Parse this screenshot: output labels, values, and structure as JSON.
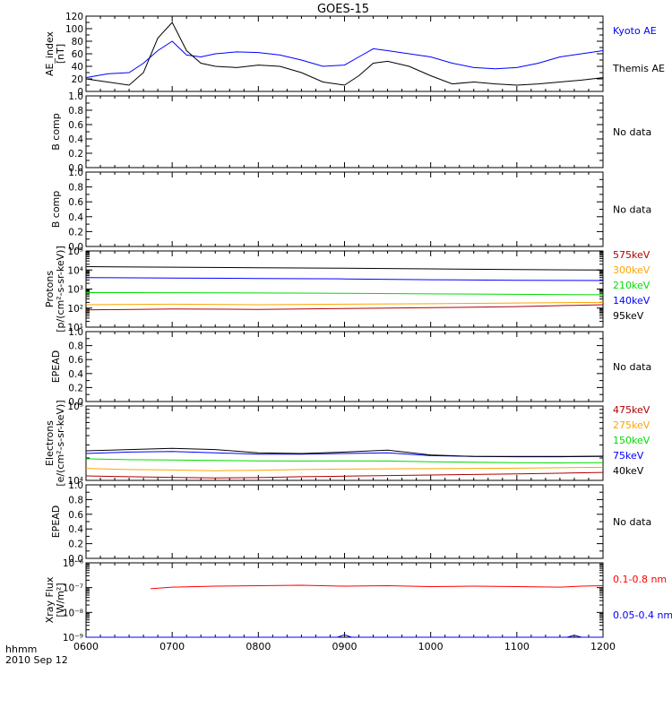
{
  "title": "GOES-15",
  "footer": {
    "time_label": "hhmm",
    "date_label": "2010 Sep 12"
  },
  "colors": {
    "black": "#000000",
    "blue": "#0000ff",
    "red": "#ff0000",
    "dark_red": "#b00000",
    "orange": "#ffa500",
    "green": "#00dd00"
  },
  "chart_data": [
    {
      "type": "line",
      "ylabel": [
        "AE_index",
        "[nT]"
      ],
      "ylim": [
        0,
        120
      ],
      "yticks": [
        "0",
        "20",
        "40",
        "60",
        "80",
        "100",
        "120"
      ],
      "xlim": [
        "0600",
        "1200"
      ],
      "series": [
        {
          "name": "Kyoto AE",
          "color": "#0000ff",
          "x": [
            "0600",
            "0615",
            "0630",
            "0640",
            "0650",
            "0700",
            "0710",
            "0720",
            "0730",
            "0745",
            "0800",
            "0815",
            "0830",
            "0845",
            "0900",
            "0910",
            "0920",
            "0930",
            "0945",
            "1000",
            "1015",
            "1030",
            "1045",
            "1100",
            "1115",
            "1130",
            "1145",
            "1200"
          ],
          "y": [
            22,
            28,
            30,
            45,
            65,
            80,
            58,
            55,
            60,
            63,
            62,
            58,
            50,
            40,
            42,
            55,
            68,
            65,
            60,
            55,
            45,
            38,
            36,
            38,
            45,
            55,
            60,
            65
          ]
        },
        {
          "name": "Themis AE",
          "color": "#000000",
          "x": [
            "0600",
            "0615",
            "0630",
            "0640",
            "0650",
            "0700",
            "0710",
            "0720",
            "0730",
            "0745",
            "0800",
            "0815",
            "0830",
            "0845",
            "0900",
            "0910",
            "0920",
            "0930",
            "0945",
            "1000",
            "1015",
            "1030",
            "1045",
            "1100",
            "1115",
            "1130",
            "1145",
            "1200"
          ],
          "y": [
            20,
            15,
            10,
            30,
            85,
            110,
            65,
            45,
            40,
            38,
            42,
            40,
            30,
            15,
            10,
            25,
            45,
            48,
            40,
            25,
            12,
            15,
            12,
            10,
            12,
            15,
            18,
            22
          ]
        }
      ]
    },
    {
      "type": "line",
      "ylabel": [
        "B comp"
      ],
      "ylim": [
        0,
        1
      ],
      "yticks": [
        "0.0",
        "0.2",
        "0.4",
        "0.6",
        "0.8",
        "1.0"
      ],
      "xlim": [
        "0600",
        "1200"
      ],
      "series": [],
      "note": "No data"
    },
    {
      "type": "line",
      "ylabel": [
        "B comp"
      ],
      "ylim": [
        0,
        1
      ],
      "yticks": [
        "0.0",
        "0.2",
        "0.4",
        "0.6",
        "0.8",
        "1.0"
      ],
      "xlim": [
        "0600",
        "1200"
      ],
      "series": [],
      "note": "No data"
    },
    {
      "type": "line",
      "ylabel": [
        "Protons",
        "[p/(cm²-s-sr-keV)]"
      ],
      "yscale": "log",
      "ylim": [
        10,
        100000
      ],
      "yticks": [
        "10¹",
        "10²",
        "10³",
        "10⁴",
        "10⁵"
      ],
      "xlim": [
        "0600",
        "1200"
      ],
      "x": [
        "0600",
        "0700",
        "0800",
        "0900",
        "1000",
        "1100",
        "1200"
      ],
      "series": [
        {
          "name": "575keV",
          "color": "#b00000",
          "y": [
            80,
            90,
            85,
            95,
            105,
            120,
            150
          ]
        },
        {
          "name": "300keV",
          "color": "#ffa500",
          "y": [
            150,
            160,
            150,
            160,
            170,
            185,
            200
          ]
        },
        {
          "name": "210keV",
          "color": "#00dd00",
          "y": [
            650,
            640,
            620,
            600,
            560,
            530,
            500
          ]
        },
        {
          "name": "140keV",
          "color": "#0000ff",
          "y": [
            4000,
            3800,
            3600,
            3400,
            3100,
            2900,
            2800
          ]
        },
        {
          "name": "95keV",
          "color": "#000000",
          "y": [
            15000,
            14000,
            13000,
            12500,
            11500,
            10500,
            10000
          ]
        }
      ]
    },
    {
      "type": "line",
      "ylabel": [
        "EPEAD"
      ],
      "ylim": [
        0,
        1
      ],
      "yticks": [
        "0.0",
        "0.2",
        "0.4",
        "0.6",
        "0.8",
        "1.0"
      ],
      "xlim": [
        "0600",
        "1200"
      ],
      "series": [],
      "note": "No data"
    },
    {
      "type": "line",
      "ylabel": [
        "Electrons",
        "[e/(cm²-s-sr-keV)]"
      ],
      "yscale": "log",
      "ylim": [
        10000,
        100000
      ],
      "yticks": [
        "10⁴",
        "10⁵"
      ],
      "xlim": [
        "0600",
        "1200"
      ],
      "x": [
        "0600",
        "0630",
        "0700",
        "0730",
        "0800",
        "0830",
        "0900",
        "0930",
        "1000",
        "1030",
        "1100",
        "1130",
        "1200"
      ],
      "series": [
        {
          "name": "475keV",
          "color": "#b00000",
          "y": [
            11500,
            11200,
            11000,
            10800,
            10900,
            11200,
            11400,
            11600,
            11800,
            12000,
            12200,
            12500,
            12800
          ]
        },
        {
          "name": "275keV",
          "color": "#ffa500",
          "y": [
            14500,
            14000,
            13800,
            13500,
            13700,
            14000,
            14200,
            14300,
            14400,
            14500,
            14600,
            14800,
            15000
          ]
        },
        {
          "name": "150keV",
          "color": "#00dd00",
          "y": [
            19500,
            19000,
            18800,
            18500,
            18300,
            18200,
            18300,
            18200,
            17800,
            17500,
            17300,
            17200,
            17300
          ]
        },
        {
          "name": "75keV",
          "color": "#0000ff",
          "y": [
            23000,
            24000,
            24500,
            23500,
            22500,
            22500,
            23000,
            23500,
            21500,
            21000,
            21000,
            21000,
            21200
          ]
        },
        {
          "name": "40keV",
          "color": "#000000",
          "y": [
            25000,
            26000,
            27000,
            26000,
            23500,
            23000,
            24000,
            25500,
            22000,
            21000,
            20800,
            20800,
            21000
          ]
        }
      ]
    },
    {
      "type": "line",
      "ylabel": [
        "EPEAD"
      ],
      "ylim": [
        0,
        1
      ],
      "yticks": [
        "0.0",
        "0.2",
        "0.4",
        "0.6",
        "0.8",
        "1.0"
      ],
      "xlim": [
        "0600",
        "1200"
      ],
      "series": [],
      "note": "No data"
    },
    {
      "type": "line",
      "ylabel": [
        "Xray Flux",
        "[W/m²]"
      ],
      "yscale": "log",
      "ylim": [
        1e-09,
        1e-06
      ],
      "yticks": [
        "10⁻⁹",
        "10⁻⁸",
        "10⁻⁷",
        "10⁻⁶"
      ],
      "xlim": [
        "0600",
        "1200"
      ],
      "xticks": [
        "0600",
        "0700",
        "0800",
        "0900",
        "1000",
        "1100",
        "1200"
      ],
      "series": [
        {
          "name": "0.1-0.8 nm",
          "color": "#ff0000",
          "x": [
            "0645",
            "0700",
            "0730",
            "0800",
            "0830",
            "0900",
            "0930",
            "1000",
            "1030",
            "1100",
            "1130",
            "1145",
            "1200"
          ],
          "y": [
            9e-08,
            1.05e-07,
            1.15e-07,
            1.2e-07,
            1.25e-07,
            1.15e-07,
            1.2e-07,
            1.1e-07,
            1.15e-07,
            1.1e-07,
            1.05e-07,
            1.15e-07,
            1.2e-07
          ]
        },
        {
          "name": "0.05-0.4 nm",
          "color": "#0000ff",
          "x": [
            "0600",
            "0700",
            "0800",
            "0855",
            "0900",
            "0905",
            "1000",
            "1100",
            "1135",
            "1140",
            "1145",
            "1200"
          ],
          "y": [
            1e-09,
            1e-09,
            1e-09,
            1e-09,
            1.25e-09,
            1e-09,
            1e-09,
            1e-09,
            1e-09,
            1.2e-09,
            1e-09,
            1e-09
          ]
        }
      ]
    }
  ]
}
